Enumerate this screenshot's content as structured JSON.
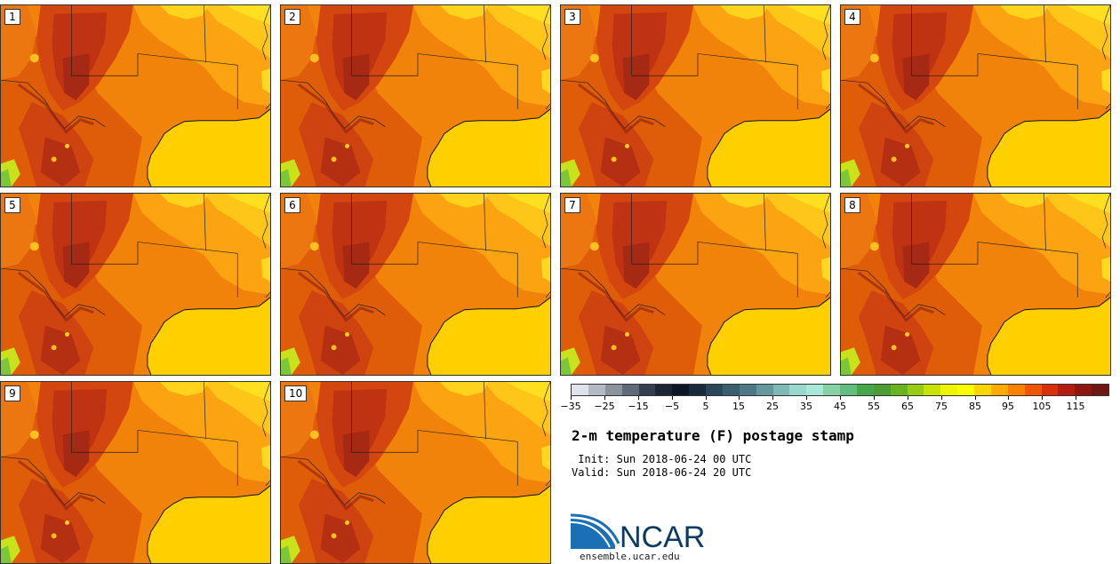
{
  "figure": {
    "title": "2-m temperature (F) postage stamp",
    "init_label": " Init:",
    "init_value": "Sun 2018-06-24 00 UTC",
    "valid_label": "Valid:",
    "valid_value": "Sun 2018-06-24 20 UTC"
  },
  "members": [
    "1",
    "2",
    "3",
    "4",
    "5",
    "6",
    "7",
    "8",
    "9",
    "10"
  ],
  "colorbar": {
    "colors": [
      "#dfe2ea",
      "#b4bac4",
      "#8a929c",
      "#5f6a78",
      "#34404f",
      "#1c2534",
      "#0b1626",
      "#182a3b",
      "#2a4658",
      "#3b5e6e",
      "#4e7886",
      "#66969e",
      "#80b8b8",
      "#9ad7cf",
      "#a8e8da",
      "#86d2a4",
      "#62bd80",
      "#48a64a",
      "#4a9d34",
      "#67b420",
      "#98cc12",
      "#c8e206",
      "#eef501",
      "#ffff00",
      "#ffd500",
      "#ffab00",
      "#fb8000",
      "#f05500",
      "#d83008",
      "#b31d0f",
      "#8f1711",
      "#701713"
    ],
    "tick_labels": [
      "−35",
      "−25",
      "−15",
      "−5",
      "5",
      "15",
      "25",
      "35",
      "45",
      "55",
      "65",
      "75",
      "85",
      "95",
      "105",
      "115"
    ]
  },
  "logo": {
    "text": "NCAR",
    "url": "ensemble.ucar.edu"
  }
}
